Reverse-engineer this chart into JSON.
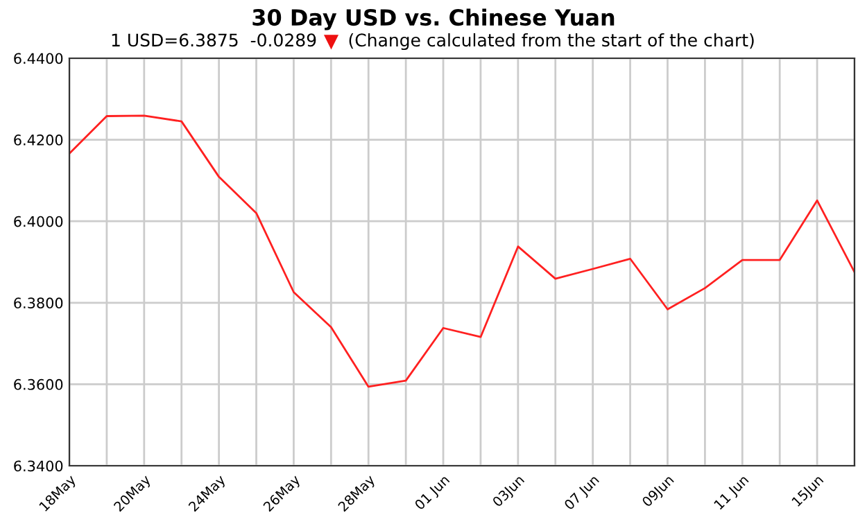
{
  "chart_data": {
    "type": "line",
    "title": "30 Day USD vs. Chinese Yuan",
    "subtitle": "1 USD=6.3875  -0.0289",
    "annotations": [
      "(Change calculated from the start of the chart)"
    ],
    "categories": [
      "18May",
      null,
      "20May",
      null,
      "24May",
      null,
      "26May",
      null,
      "28May",
      null,
      "01 Jun",
      null,
      "03Jun",
      null,
      "07 Jun",
      null,
      "09Jun",
      null,
      "11 Jun",
      null,
      "15Jun",
      null
    ],
    "series": [
      {
        "color": "#ff2020",
        "values": [
          6.4166,
          6.4258,
          6.4259,
          6.4245,
          6.4109,
          6.402,
          6.3826,
          6.374,
          6.3594,
          6.3609,
          6.3738,
          6.3716,
          6.3938,
          6.3859,
          6.3883,
          6.3908,
          6.3784,
          6.3836,
          6.3905,
          6.3905,
          6.4051,
          6.3875
        ]
      }
    ],
    "ylim": [
      6.34,
      6.44
    ],
    "yticks": [
      {
        "value": 6.34,
        "label": "6.3400"
      },
      {
        "value": 6.36,
        "label": "6.3600"
      },
      {
        "value": 6.38,
        "label": "6.3800"
      },
      {
        "value": 6.4,
        "label": "6.4000"
      },
      {
        "value": 6.42,
        "label": "6.4200"
      },
      {
        "value": 6.44,
        "label": "6.4400"
      }
    ],
    "grid": true,
    "marker": "none",
    "line_style": "solid",
    "legend": false
  }
}
